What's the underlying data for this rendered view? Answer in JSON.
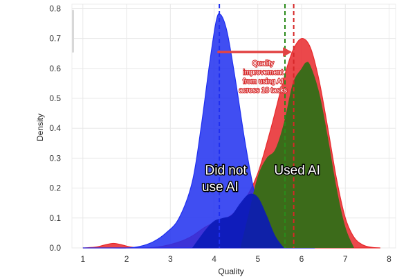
{
  "chart_data": {
    "type": "area",
    "xlabel": "Quality",
    "ylabel": "Density",
    "xlim": [
      0.75,
      8.15
    ],
    "ylim": [
      0,
      0.815
    ],
    "x_ticks": [
      1,
      2,
      3,
      4,
      5,
      6,
      7,
      8
    ],
    "y_ticks": [
      0.0,
      0.1,
      0.2,
      0.3,
      0.4,
      0.5,
      0.6,
      0.7,
      0.8
    ],
    "grid": true,
    "colors": {
      "did_not_use_ai": "#1f2ff0",
      "used_ai": "#e8282b",
      "overlap_used": "#3c6b1a",
      "overlap_low": "#0a1ab8",
      "mean_did_not": "#1f2ff0",
      "mean_used": "#d62728",
      "mean_green": "#2a8a1a",
      "arrow": "#e24444"
    },
    "series": [
      {
        "key": "did_not_use_ai",
        "x": [
          1.0,
          1.5,
          2.0,
          2.3,
          2.6,
          2.9,
          3.2,
          3.5,
          3.7,
          3.9,
          4.05,
          4.15,
          4.3,
          4.5,
          4.7,
          4.9,
          5.1,
          5.3,
          5.5,
          5.7,
          5.9,
          6.1,
          6.3
        ],
        "y": [
          0.0,
          0.0,
          0.0,
          0.005,
          0.02,
          0.05,
          0.1,
          0.22,
          0.4,
          0.62,
          0.76,
          0.78,
          0.72,
          0.55,
          0.36,
          0.2,
          0.09,
          0.04,
          0.015,
          0.005,
          0.002,
          0.0,
          0.0
        ]
      },
      {
        "key": "used_ai",
        "x": [
          1.0,
          1.3,
          1.5,
          1.7,
          1.9,
          2.1,
          2.4,
          2.8,
          3.2,
          3.5,
          3.8,
          4.1,
          4.4,
          4.7,
          5.0,
          5.3,
          5.6,
          5.8,
          6.0,
          6.2,
          6.4,
          6.6,
          6.8,
          7.0,
          7.2,
          7.4,
          7.6,
          7.8
        ],
        "y": [
          0.0,
          0.003,
          0.01,
          0.015,
          0.01,
          0.003,
          0.0,
          0.005,
          0.02,
          0.04,
          0.07,
          0.09,
          0.11,
          0.16,
          0.25,
          0.4,
          0.57,
          0.66,
          0.7,
          0.67,
          0.56,
          0.4,
          0.23,
          0.1,
          0.035,
          0.01,
          0.002,
          0.0
        ]
      },
      {
        "key": "overlap_used",
        "x": [
          4.6,
          4.8,
          5.0,
          5.2,
          5.4,
          5.6,
          5.8,
          6.0,
          6.1,
          6.2,
          6.4,
          6.6,
          6.8,
          7.0,
          7.2
        ],
        "y": [
          0.0,
          0.12,
          0.24,
          0.3,
          0.33,
          0.42,
          0.55,
          0.6,
          0.62,
          0.61,
          0.52,
          0.37,
          0.2,
          0.07,
          0.0
        ]
      },
      {
        "key": "overlap_low",
        "x": [
          3.5,
          3.8,
          4.0,
          4.2,
          4.4,
          4.6,
          4.8,
          5.0,
          5.2,
          5.4,
          5.6
        ],
        "y": [
          0.0,
          0.06,
          0.09,
          0.1,
          0.11,
          0.15,
          0.18,
          0.17,
          0.11,
          0.04,
          0.0
        ]
      }
    ],
    "mean_lines": [
      {
        "key": "mean_did_not",
        "x": 4.12
      },
      {
        "key": "mean_green",
        "x": 5.62
      },
      {
        "key": "mean_used",
        "x": 5.82
      }
    ],
    "arrow": {
      "x_start": 4.1,
      "x_end": 5.78,
      "y": 0.655
    },
    "annotations": [
      {
        "key": "annotation_line_1",
        "text": "Quality",
        "x": 5.12,
        "y": 0.61
      },
      {
        "key": "annotation_line_2",
        "text": "improvement",
        "x": 5.12,
        "y": 0.58
      },
      {
        "key": "annotation_line_3",
        "text": "from using AI",
        "x": 5.12,
        "y": 0.55
      },
      {
        "key": "annotation_line_4",
        "text": "across 18 tasks",
        "x": 5.12,
        "y": 0.52
      }
    ],
    "area_labels": [
      {
        "key": "label_did_not_line_1",
        "text": "Did not",
        "x": 4.27,
        "y": 0.245
      },
      {
        "key": "label_did_not_line_2",
        "text": "use AI",
        "x": 4.14,
        "y": 0.19
      },
      {
        "key": "label_used_ai",
        "text": "Used AI",
        "x": 5.9,
        "y": 0.245
      }
    ]
  }
}
